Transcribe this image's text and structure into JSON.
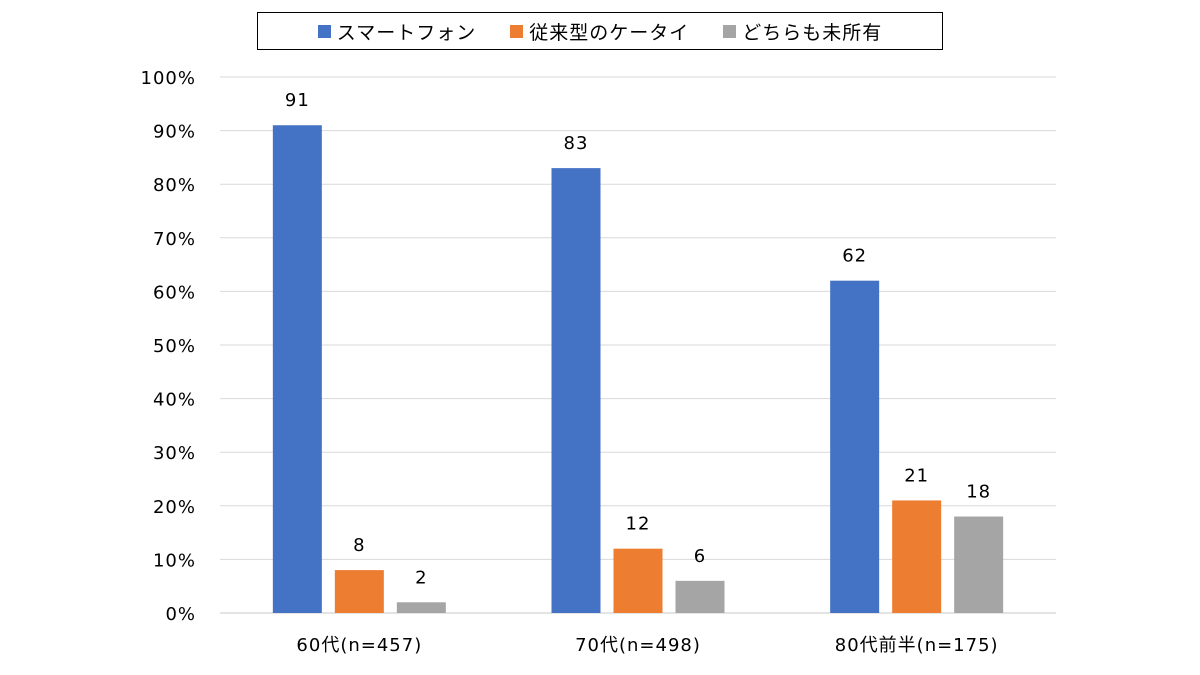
{
  "chart_data": {
    "type": "bar",
    "categories": [
      "60代(n=457)",
      "70代(n=498)",
      "80代前半(n=175)"
    ],
    "series": [
      {
        "name": "スマートフォン",
        "values": [
          91,
          83,
          62
        ],
        "color": "#4472C4"
      },
      {
        "name": "従来型のケータイ",
        "values": [
          8,
          12,
          21
        ],
        "color": "#ED7D31"
      },
      {
        "name": "どちらも未所有",
        "values": [
          2,
          6,
          18
        ],
        "color": "#A5A5A5"
      }
    ],
    "y_ticks": [
      "0%",
      "10%",
      "20%",
      "30%",
      "40%",
      "50%",
      "60%",
      "70%",
      "80%",
      "90%",
      "100%"
    ],
    "ylim": [
      0,
      100
    ],
    "grid": true,
    "legend_position": "top"
  }
}
